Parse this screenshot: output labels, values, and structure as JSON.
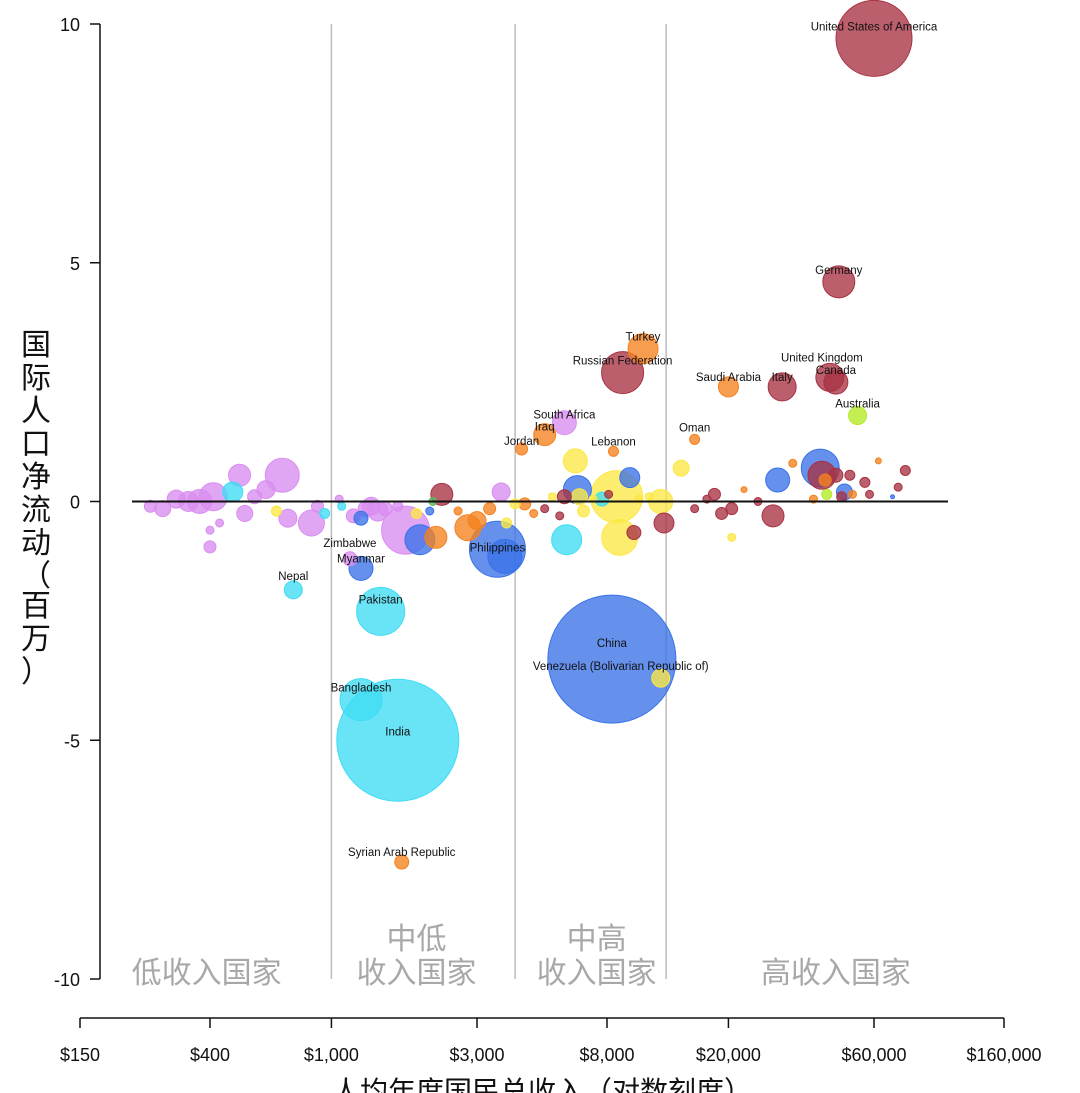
{
  "chart_data": {
    "type": "scatter",
    "title": "",
    "xlabel": "人均年度国民总收入（对数刻度）",
    "ylabel": "国际人口净流动（百万）",
    "x_scale": "log",
    "xlim": [
      150,
      160000
    ],
    "ylim": [
      -10,
      10
    ],
    "x_ticks": [
      {
        "value": 150,
        "label": "$150"
      },
      {
        "value": 400,
        "label": "$400"
      },
      {
        "value": 1000,
        "label": "$1,000"
      },
      {
        "value": 3000,
        "label": "$3,000"
      },
      {
        "value": 8000,
        "label": "$8,000"
      },
      {
        "value": 20000,
        "label": "$20,000"
      },
      {
        "value": 60000,
        "label": "$60,000"
      },
      {
        "value": 160000,
        "label": "$160,000"
      }
    ],
    "y_ticks": [
      {
        "value": 10,
        "label": "10"
      },
      {
        "value": 5,
        "label": "5"
      },
      {
        "value": 0,
        "label": "0"
      },
      {
        "value": -5,
        "label": "-5"
      },
      {
        "value": -10,
        "label": "-10"
      }
    ],
    "zero_line": 0,
    "dividers": [
      1000,
      4000,
      12500
    ],
    "regions": [
      {
        "lines": [
          "低收入国家"
        ],
        "x": 390
      },
      {
        "lines": [
          "中低",
          "收入国家"
        ],
        "x": 1900
      },
      {
        "lines": [
          "中高",
          "收入国家"
        ],
        "x": 7400
      },
      {
        "lines": [
          "高收入国家"
        ],
        "x": 45000
      }
    ],
    "colors": {
      "purple": "#d98df0",
      "cyan": "#3fdcf4",
      "blue": "#3a72e8",
      "orange": "#f5811f",
      "yellow": "#fce845",
      "red": "#a83243",
      "lime": "#b3ea23",
      "green": "#5cb85c"
    },
    "labeled_points": [
      {
        "name": "United States of America",
        "x": 60000,
        "y": 9.7,
        "r": 38,
        "color": "red"
      },
      {
        "name": "Germany",
        "x": 46000,
        "y": 4.6,
        "r": 16,
        "color": "red"
      },
      {
        "name": "Turkey",
        "x": 10500,
        "y": 3.2,
        "r": 15,
        "color": "orange"
      },
      {
        "name": "Russian Federation",
        "x": 9000,
        "y": 2.7,
        "r": 21,
        "color": "red"
      },
      {
        "name": "United Kingdom",
        "x": 43000,
        "y": 2.6,
        "r": 14,
        "color": "red"
      },
      {
        "name": "Canada",
        "x": 45000,
        "y": 2.5,
        "r": 12,
        "color": "red"
      },
      {
        "name": "Saudi Arabia",
        "x": 20000,
        "y": 2.4,
        "r": 10,
        "color": "orange"
      },
      {
        "name": "Italy",
        "x": 30000,
        "y": 2.4,
        "r": 14,
        "color": "red"
      },
      {
        "name": "Australia",
        "x": 53000,
        "y": 1.8,
        "r": 9,
        "color": "lime"
      },
      {
        "name": "South Africa",
        "x": 5800,
        "y": 1.65,
        "r": 12,
        "color": "purple"
      },
      {
        "name": "Iraq",
        "x": 5000,
        "y": 1.4,
        "r": 11,
        "color": "orange"
      },
      {
        "name": "Jordan",
        "x": 4200,
        "y": 1.1,
        "r": 6,
        "color": "orange"
      },
      {
        "name": "Oman",
        "x": 15500,
        "y": 1.3,
        "r": 5,
        "color": "orange"
      },
      {
        "name": "Lebanon",
        "x": 8400,
        "y": 1.05,
        "r": 5,
        "color": "orange"
      },
      {
        "name": "Zimbabwe",
        "x": 1150,
        "y": -1.2,
        "r": 7,
        "color": "purple"
      },
      {
        "name": "Myanmar",
        "x": 1250,
        "y": -1.4,
        "r": 12,
        "color": "blue"
      },
      {
        "name": "Philippines",
        "x": 3500,
        "y": -1.0,
        "r": 28,
        "color": "blue"
      },
      {
        "name": "Nepal",
        "x": 750,
        "y": -1.85,
        "r": 9,
        "color": "cyan"
      },
      {
        "name": "Pakistan",
        "x": 1450,
        "y": -2.3,
        "r": 24,
        "color": "cyan"
      },
      {
        "name": "China",
        "x": 8300,
        "y": -3.3,
        "r": 64,
        "color": "blue"
      },
      {
        "name": "Venezuela (Bolivarian Republic of)",
        "x": 12000,
        "y": -3.7,
        "r": 9,
        "color": "yellow"
      },
      {
        "name": "Bangladesh",
        "x": 1250,
        "y": -4.15,
        "r": 21,
        "color": "cyan"
      },
      {
        "name": "India",
        "x": 1650,
        "y": -5.0,
        "r": 61,
        "color": "cyan"
      },
      {
        "name": "Syrian Arab Republic",
        "x": 1700,
        "y": -7.55,
        "r": 7,
        "color": "orange"
      }
    ],
    "other_points": [
      {
        "x": 255,
        "y": -0.1,
        "r": 6,
        "color": "purple"
      },
      {
        "x": 280,
        "y": -0.15,
        "r": 8,
        "color": "purple"
      },
      {
        "x": 310,
        "y": 0.05,
        "r": 9,
        "color": "purple"
      },
      {
        "x": 340,
        "y": 0.0,
        "r": 10,
        "color": "purple"
      },
      {
        "x": 370,
        "y": 0.0,
        "r": 12,
        "color": "purple"
      },
      {
        "x": 410,
        "y": 0.1,
        "r": 14,
        "color": "purple"
      },
      {
        "x": 430,
        "y": -0.45,
        "r": 4,
        "color": "purple"
      },
      {
        "x": 400,
        "y": -0.6,
        "r": 4,
        "color": "purple"
      },
      {
        "x": 400,
        "y": -0.95,
        "r": 6,
        "color": "purple"
      },
      {
        "x": 475,
        "y": 0.2,
        "r": 10,
        "color": "cyan"
      },
      {
        "x": 500,
        "y": 0.55,
        "r": 11,
        "color": "purple"
      },
      {
        "x": 520,
        "y": -0.25,
        "r": 8,
        "color": "purple"
      },
      {
        "x": 560,
        "y": 0.1,
        "r": 7,
        "color": "purple"
      },
      {
        "x": 610,
        "y": 0.25,
        "r": 9,
        "color": "purple"
      },
      {
        "x": 690,
        "y": 0.55,
        "r": 17,
        "color": "purple"
      },
      {
        "x": 720,
        "y": -0.35,
        "r": 9,
        "color": "purple"
      },
      {
        "x": 660,
        "y": -0.2,
        "r": 5,
        "color": "yellow"
      },
      {
        "x": 860,
        "y": -0.45,
        "r": 13,
        "color": "purple"
      },
      {
        "x": 900,
        "y": -0.1,
        "r": 6,
        "color": "purple"
      },
      {
        "x": 950,
        "y": -0.25,
        "r": 5,
        "color": "cyan"
      },
      {
        "x": 1060,
        "y": 0.05,
        "r": 4,
        "color": "purple"
      },
      {
        "x": 1080,
        "y": -0.1,
        "r": 4,
        "color": "cyan"
      },
      {
        "x": 1180,
        "y": -0.3,
        "r": 7,
        "color": "purple"
      },
      {
        "x": 1250,
        "y": -0.35,
        "r": 7,
        "color": "blue"
      },
      {
        "x": 1300,
        "y": -0.15,
        "r": 8,
        "color": "purple"
      },
      {
        "x": 1350,
        "y": -0.1,
        "r": 9,
        "color": "purple"
      },
      {
        "x": 1420,
        "y": -0.2,
        "r": 10,
        "color": "purple"
      },
      {
        "x": 1500,
        "y": -0.15,
        "r": 7,
        "color": "purple"
      },
      {
        "x": 1650,
        "y": -0.1,
        "r": 5,
        "color": "purple"
      },
      {
        "x": 1750,
        "y": -0.6,
        "r": 24,
        "color": "purple"
      },
      {
        "x": 1900,
        "y": -0.25,
        "r": 5,
        "color": "yellow"
      },
      {
        "x": 1950,
        "y": -0.8,
        "r": 15,
        "color": "blue"
      },
      {
        "x": 2100,
        "y": -0.2,
        "r": 4,
        "color": "blue"
      },
      {
        "x": 2200,
        "y": -0.75,
        "r": 11,
        "color": "orange"
      },
      {
        "x": 2300,
        "y": 0.15,
        "r": 11,
        "color": "red"
      },
      {
        "x": 2150,
        "y": 0.0,
        "r": 4,
        "color": "green"
      },
      {
        "x": 2600,
        "y": -0.2,
        "r": 4,
        "color": "orange"
      },
      {
        "x": 2800,
        "y": -0.55,
        "r": 13,
        "color": "orange"
      },
      {
        "x": 3000,
        "y": -0.4,
        "r": 9,
        "color": "orange"
      },
      {
        "x": 3300,
        "y": -0.15,
        "r": 6,
        "color": "orange"
      },
      {
        "x": 3600,
        "y": 0.2,
        "r": 9,
        "color": "purple"
      },
      {
        "x": 3700,
        "y": -1.15,
        "r": 17,
        "color": "blue"
      },
      {
        "x": 3750,
        "y": -0.45,
        "r": 5,
        "color": "yellow"
      },
      {
        "x": 4000,
        "y": -0.05,
        "r": 5,
        "color": "yellow"
      },
      {
        "x": 4300,
        "y": -0.05,
        "r": 6,
        "color": "orange"
      },
      {
        "x": 4600,
        "y": -0.25,
        "r": 4,
        "color": "orange"
      },
      {
        "x": 5000,
        "y": -0.15,
        "r": 4,
        "color": "red"
      },
      {
        "x": 5300,
        "y": 0.1,
        "r": 4,
        "color": "yellow"
      },
      {
        "x": 5600,
        "y": -0.3,
        "r": 4,
        "color": "red"
      },
      {
        "x": 5800,
        "y": 0.1,
        "r": 7,
        "color": "red"
      },
      {
        "x": 5900,
        "y": -0.8,
        "r": 15,
        "color": "cyan"
      },
      {
        "x": 6300,
        "y": 0.85,
        "r": 12,
        "color": "yellow"
      },
      {
        "x": 6400,
        "y": 0.25,
        "r": 14,
        "color": "blue"
      },
      {
        "x": 6500,
        "y": 0.1,
        "r": 8,
        "color": "yellow"
      },
      {
        "x": 6700,
        "y": -0.2,
        "r": 6,
        "color": "yellow"
      },
      {
        "x": 7200,
        "y": 0.05,
        "r": 4,
        "color": "yellow"
      },
      {
        "x": 7700,
        "y": 0.05,
        "r": 7,
        "color": "cyan"
      },
      {
        "x": 8100,
        "y": 0.15,
        "r": 4,
        "color": "red"
      },
      {
        "x": 8600,
        "y": 0.1,
        "r": 26,
        "color": "yellow"
      },
      {
        "x": 8800,
        "y": -0.75,
        "r": 18,
        "color": "yellow"
      },
      {
        "x": 9500,
        "y": 0.5,
        "r": 10,
        "color": "blue"
      },
      {
        "x": 9800,
        "y": -0.65,
        "r": 7,
        "color": "red"
      },
      {
        "x": 10200,
        "y": 0.05,
        "r": 4,
        "color": "yellow"
      },
      {
        "x": 11000,
        "y": 0.1,
        "r": 4,
        "color": "yellow"
      },
      {
        "x": 12000,
        "y": 0.0,
        "r": 12,
        "color": "yellow"
      },
      {
        "x": 12300,
        "y": -0.45,
        "r": 10,
        "color": "red"
      },
      {
        "x": 14000,
        "y": 0.7,
        "r": 8,
        "color": "yellow"
      },
      {
        "x": 15500,
        "y": -0.15,
        "r": 4,
        "color": "red"
      },
      {
        "x": 17000,
        "y": 0.05,
        "r": 4,
        "color": "red"
      },
      {
        "x": 18000,
        "y": 0.15,
        "r": 6,
        "color": "red"
      },
      {
        "x": 19000,
        "y": -0.25,
        "r": 6,
        "color": "red"
      },
      {
        "x": 20500,
        "y": -0.15,
        "r": 6,
        "color": "red"
      },
      {
        "x": 20500,
        "y": -0.75,
        "r": 4,
        "color": "yellow"
      },
      {
        "x": 22500,
        "y": 0.25,
        "r": 3,
        "color": "orange"
      },
      {
        "x": 25000,
        "y": 0.0,
        "r": 4,
        "color": "red"
      },
      {
        "x": 28000,
        "y": -0.3,
        "r": 11,
        "color": "red"
      },
      {
        "x": 29000,
        "y": 0.45,
        "r": 12,
        "color": "blue"
      },
      {
        "x": 32500,
        "y": 0.8,
        "r": 4,
        "color": "orange"
      },
      {
        "x": 38000,
        "y": 0.05,
        "r": 4,
        "color": "orange"
      },
      {
        "x": 40000,
        "y": 0.7,
        "r": 19,
        "color": "blue"
      },
      {
        "x": 40500,
        "y": 0.55,
        "r": 14,
        "color": "red"
      },
      {
        "x": 41500,
        "y": 0.45,
        "r": 6,
        "color": "orange"
      },
      {
        "x": 42000,
        "y": 0.15,
        "r": 5,
        "color": "lime"
      },
      {
        "x": 45000,
        "y": 0.55,
        "r": 7,
        "color": "red"
      },
      {
        "x": 47000,
        "y": 0.1,
        "r": 5,
        "color": "red"
      },
      {
        "x": 48000,
        "y": 0.2,
        "r": 8,
        "color": "blue"
      },
      {
        "x": 50000,
        "y": 0.55,
        "r": 5,
        "color": "red"
      },
      {
        "x": 51000,
        "y": 0.15,
        "r": 4,
        "color": "orange"
      },
      {
        "x": 56000,
        "y": 0.4,
        "r": 5,
        "color": "red"
      },
      {
        "x": 58000,
        "y": 0.15,
        "r": 4,
        "color": "red"
      },
      {
        "x": 62000,
        "y": 0.85,
        "r": 3,
        "color": "orange"
      },
      {
        "x": 69000,
        "y": 0.1,
        "r": 2,
        "color": "blue"
      },
      {
        "x": 72000,
        "y": 0.3,
        "r": 4,
        "color": "red"
      },
      {
        "x": 76000,
        "y": 0.65,
        "r": 5,
        "color": "red"
      }
    ]
  }
}
